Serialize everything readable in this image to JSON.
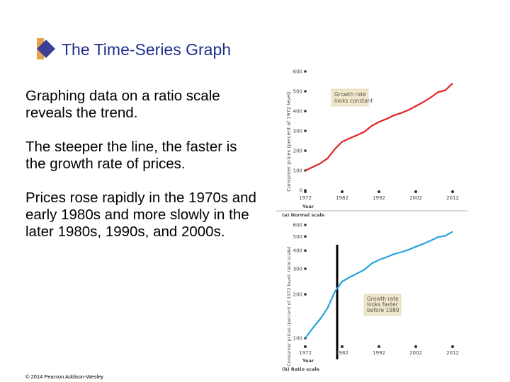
{
  "slide": {
    "title": "The Time-Series Graph",
    "bullets": [
      "Graphing data on a ratio scale reveals the trend.",
      "The steeper the line, the faster is the growth rate of prices.",
      "Prices rose rapidly in the 1970s and early 1980s and more slowly in the later 1980s, 1990s, and 2000s."
    ],
    "copyright": "© 2014 Pearson Addison-Wesley",
    "colors": {
      "title": "#1f2f8c",
      "normal_line": "#e0242b",
      "ratio_line": "#27a3dc",
      "box_fill": "#f1e7c9"
    }
  },
  "chart_data": [
    {
      "type": "line",
      "panel_label": "(a) Normal scale",
      "xlabel": "Year",
      "ylabel": "Consumer prices (percent of 1972 level)",
      "x_ticks": [
        "1972",
        "1982",
        "1992",
        "2002",
        "2012"
      ],
      "y_ticks": [
        "0",
        "100",
        "200",
        "300",
        "400",
        "500",
        "600"
      ],
      "xlim": [
        1972,
        2012
      ],
      "ylim": [
        0,
        600
      ],
      "scale": "linear",
      "annotation": "Growth rate looks constant",
      "series": [
        {
          "x": [
            1972,
            1974,
            1976,
            1978,
            1980,
            1982,
            1984,
            1986,
            1988,
            1990,
            1992,
            1994,
            1996,
            1998,
            2000,
            2002,
            2004,
            2006,
            2008,
            2010,
            2012
          ],
          "values": [
            100,
            117,
            135,
            160,
            208,
            245,
            262,
            278,
            295,
            325,
            345,
            360,
            378,
            390,
            405,
            425,
            445,
            468,
            495,
            505,
            540
          ]
        }
      ]
    },
    {
      "type": "line",
      "panel_label": "(b) Ratio scale",
      "xlabel": "Year",
      "ylabel": "Consumer prices (percent of 1972 level: ratio scale)",
      "x_ticks": [
        "1972",
        "1982",
        "1992",
        "2002",
        "2012"
      ],
      "y_ticks": [
        "100",
        "200",
        "300",
        "400",
        "500",
        "600"
      ],
      "xlim": [
        1972,
        2012
      ],
      "ylim": [
        100,
        600
      ],
      "scale": "log",
      "annotation": "Growth rate looks faster before 1980",
      "series": [
        {
          "x": [
            1972,
            1974,
            1976,
            1978,
            1980,
            1982,
            1984,
            1986,
            1988,
            1990,
            1992,
            1994,
            1996,
            1998,
            2000,
            2002,
            2004,
            2006,
            2008,
            2010,
            2012
          ],
          "values": [
            100,
            117,
            135,
            160,
            208,
            245,
            262,
            278,
            295,
            325,
            345,
            360,
            378,
            390,
            405,
            425,
            445,
            468,
            495,
            505,
            540
          ]
        }
      ]
    }
  ]
}
